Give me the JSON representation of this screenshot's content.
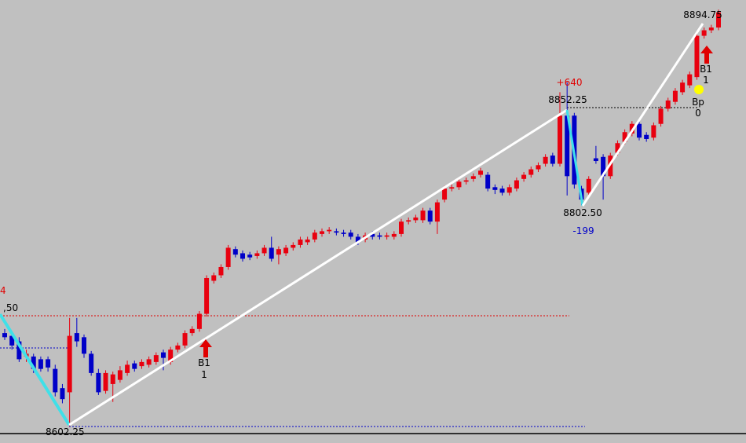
{
  "chart_data": {
    "type": "candlestick",
    "up_color": "#e8000f",
    "down_color": "#0000c8",
    "ylim": [
      8597,
      8912
    ],
    "open": [
      8670,
      8668,
      8664,
      8653,
      8653,
      8651,
      8651,
      8644,
      8630,
      8627,
      8670,
      8667,
      8655,
      8641,
      8628,
      8633,
      8636,
      8641,
      8648,
      8646,
      8647,
      8649,
      8656,
      8649,
      8658,
      8661,
      8670,
      8673,
      8684,
      8708,
      8712,
      8718,
      8731,
      8728,
      8727,
      8726,
      8728,
      8732,
      8727,
      8728,
      8732,
      8734,
      8736,
      8738,
      8742,
      8744,
      8744,
      8743,
      8743,
      8740,
      8738,
      8742,
      8741,
      8740,
      8740,
      8742,
      8751,
      8752,
      8752,
      8759,
      8751,
      8767,
      8775,
      8776,
      8780,
      8782,
      8785,
      8785,
      8776,
      8775,
      8772,
      8775,
      8782,
      8785,
      8789,
      8793,
      8799,
      8793,
      8828,
      8828,
      8775,
      8772,
      8797,
      8798,
      8784,
      8801,
      8809,
      8815,
      8822,
      8814,
      8812,
      8822,
      8833,
      8838,
      8845,
      8850,
      8856,
      8886,
      8890,
      8892
    ],
    "high": [
      8673,
      8670,
      8667,
      8658,
      8655,
      8653,
      8653,
      8647,
      8633,
      8681,
      8681,
      8669,
      8657,
      8644,
      8643,
      8642,
      8646,
      8650,
      8650,
      8651,
      8653,
      8656,
      8658,
      8660,
      8663,
      8672,
      8675,
      8686,
      8712,
      8714,
      8720,
      8734,
      8733,
      8730,
      8729,
      8730,
      8734,
      8740,
      8733,
      8734,
      8736,
      8740,
      8740,
      8745,
      8746,
      8747,
      8746,
      8745,
      8745,
      8742,
      8743,
      8744,
      8743,
      8743,
      8744,
      8753,
      8754,
      8756,
      8761,
      8761,
      8767,
      8777,
      8778,
      8782,
      8783,
      8786,
      8790,
      8787,
      8778,
      8777,
      8778,
      8783,
      8787,
      8791,
      8794,
      8800,
      8801,
      8845,
      8852.25,
      8830,
      8777,
      8784,
      8806,
      8800,
      8801,
      8810,
      8818,
      8824,
      8824,
      8816,
      8823,
      8835,
      8841,
      8848,
      8854,
      8860,
      8888,
      8892,
      8894,
      8905
    ],
    "low": [
      8665,
      8658,
      8649,
      8649,
      8641,
      8642,
      8642,
      8624,
      8619,
      8602.25,
      8660,
      8652,
      8639,
      8625,
      8626,
      8620,
      8634,
      8639,
      8642,
      8644,
      8645,
      8647,
      8643,
      8647,
      8656,
      8659,
      8668,
      8671,
      8682,
      8706,
      8710,
      8716,
      8725,
      8722,
      8723,
      8724,
      8726,
      8722,
      8720,
      8726,
      8730,
      8732,
      8734,
      8736,
      8740,
      8742,
      8741,
      8740,
      8738,
      8734,
      8736,
      8738,
      8738,
      8738,
      8738,
      8740,
      8749,
      8750,
      8750,
      8749,
      8742,
      8765,
      8773,
      8774,
      8778,
      8780,
      8783,
      8773,
      8771,
      8770,
      8770,
      8773,
      8780,
      8783,
      8787,
      8791,
      8791,
      8791,
      8770,
      8775,
      8763,
      8770,
      8793,
      8767,
      8782,
      8799,
      8807,
      8813,
      8810,
      8809,
      8810,
      8820,
      8831,
      8836,
      8843,
      8848,
      8854,
      8884,
      8888,
      8890
    ],
    "close": [
      8667,
      8661,
      8651,
      8655,
      8644,
      8644,
      8645,
      8627,
      8622,
      8668,
      8664,
      8655,
      8641,
      8627,
      8641,
      8640,
      8643,
      8647,
      8644,
      8649,
      8651,
      8654,
      8652,
      8658,
      8661,
      8670,
      8673,
      8684,
      8710,
      8712,
      8718,
      8732,
      8727,
      8724,
      8725,
      8728,
      8732,
      8724,
      8731,
      8732,
      8734,
      8738,
      8738,
      8743,
      8744,
      8745,
      8743,
      8742,
      8740,
      8736,
      8741,
      8740,
      8740,
      8741,
      8742,
      8751,
      8752,
      8754,
      8759,
      8751,
      8765,
      8775,
      8776,
      8780,
      8781,
      8784,
      8788,
      8775,
      8774,
      8772,
      8776,
      8781,
      8785,
      8789,
      8792,
      8798,
      8793,
      8828,
      8784,
      8778,
      8767,
      8782,
      8795,
      8784,
      8799,
      8808,
      8816,
      8822,
      8812,
      8811,
      8821,
      8833,
      8839,
      8846,
      8852,
      8858,
      8886,
      8890,
      8892,
      8903
    ],
    "annotations": [
      "4",
      ",50",
      "8602.25",
      "B1",
      "1",
      "+640",
      "8852.25",
      "8802.50",
      "-199",
      "8894.75",
      "B1",
      "1",
      "Bp",
      "0"
    ]
  }
}
